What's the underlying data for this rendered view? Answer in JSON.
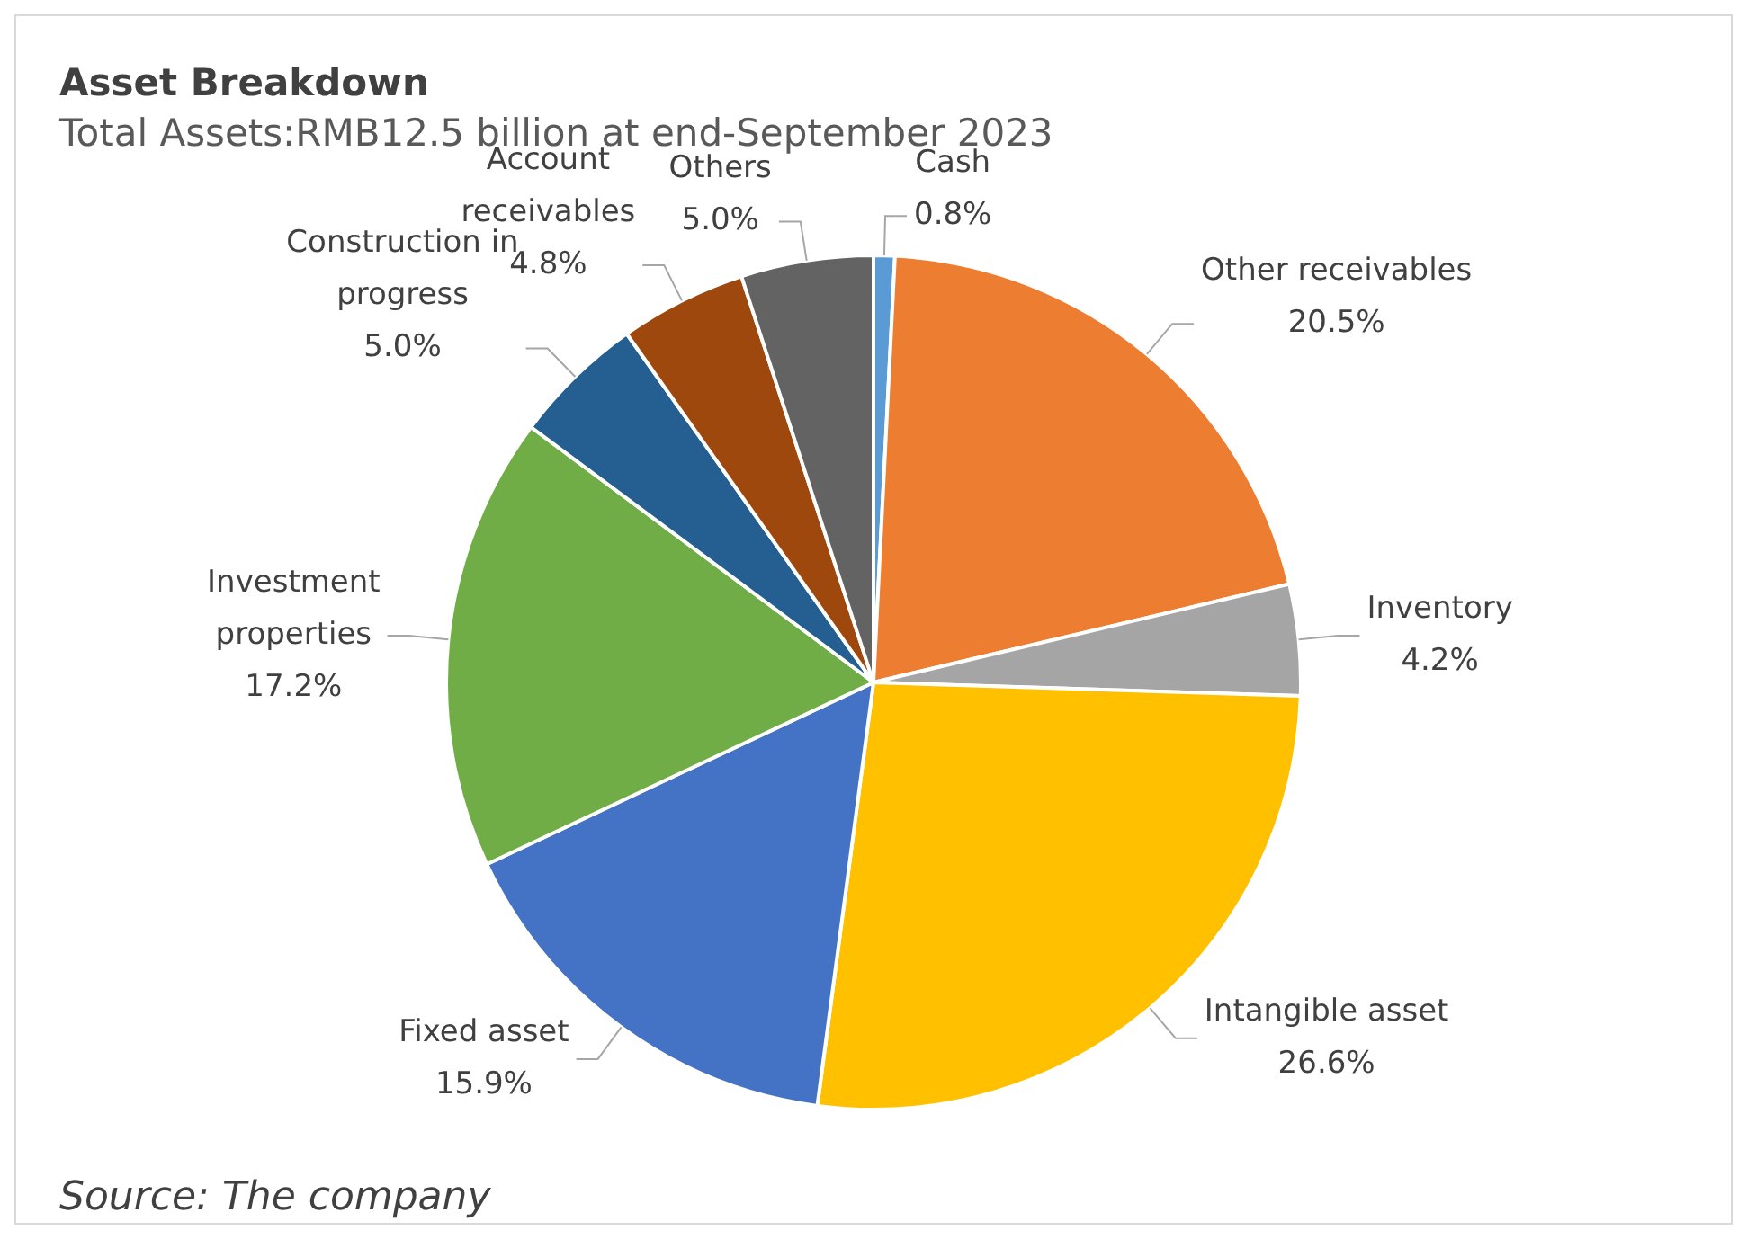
{
  "chart_data": {
    "type": "pie",
    "title": "Asset Breakdown",
    "subtitle": "Total Assets:RMB12.5 billion at end-September 2023",
    "categories": [
      "Cash",
      "Other receivables",
      "Inventory",
      "Intangible asset",
      "Fixed asset",
      "Investment properties",
      "Construction in progress",
      "Account receivables",
      "Others"
    ],
    "values": [
      0.8,
      20.5,
      4.2,
      26.6,
      15.9,
      17.2,
      5.0,
      4.8,
      5.0
    ],
    "value_labels": [
      "0.8%",
      "20.5%",
      "4.2%",
      "26.6%",
      "15.9%",
      "17.2%",
      "5.0%",
      "4.8%",
      "5.0%"
    ],
    "colors": [
      "#5b9bd5",
      "#ed7d31",
      "#a5a5a5",
      "#ffc000",
      "#4472c4",
      "#70ad47",
      "#255e91",
      "#9e480e",
      "#636363"
    ],
    "annotations": [
      "Source: The company"
    ],
    "legend": false
  }
}
